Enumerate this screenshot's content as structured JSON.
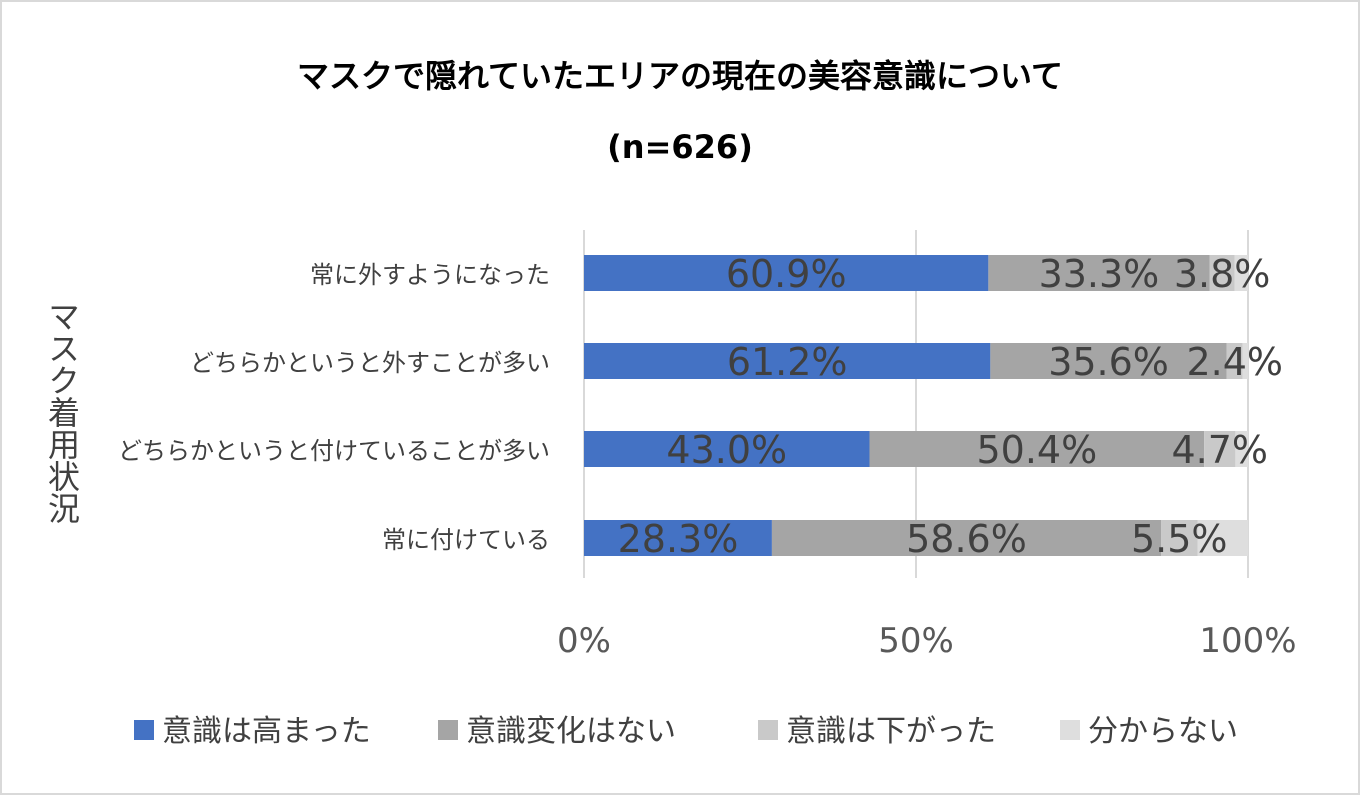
{
  "chart_data": {
    "type": "bar",
    "orientation": "horizontal",
    "stacked": "percent",
    "title": "マスクで隠れていたエリアの現在の美容意識について",
    "subtitle": "(n=626)",
    "ylabel": "マスク着用状況",
    "xlabel": "",
    "categories": [
      "常に外すようになった",
      "どちらかというと外すことが多い",
      "どちらかというと付けていることが多い",
      "常に付けている"
    ],
    "series": [
      {
        "name": "意識は高まった",
        "color": "#4472C4",
        "values": [
          60.9,
          61.2,
          43.0,
          28.3
        ],
        "labels": [
          "60.9%",
          "61.2%",
          "43.0%",
          "28.3%"
        ]
      },
      {
        "name": "意識変化はない",
        "color": "#A5A5A5",
        "values": [
          33.3,
          35.6,
          50.4,
          58.6
        ],
        "labels": [
          "33.3%",
          "35.6%",
          "50.4%",
          "58.6%"
        ]
      },
      {
        "name": "意識は下がった",
        "color": "#C9C9C9",
        "values": [
          3.8,
          2.4,
          4.7,
          5.5
        ],
        "labels": [
          "3.8%",
          "2.4%",
          "4.7%",
          "5.5%"
        ]
      },
      {
        "name": "分からない",
        "color": "#DEDEDE",
        "values": [
          2.0,
          0.8,
          1.9,
          7.6
        ],
        "labels": [
          "",
          "",
          "",
          ""
        ]
      }
    ],
    "xlim": [
      0,
      100
    ],
    "xticks": [
      {
        "value": 0,
        "label": "0%"
      },
      {
        "value": 50,
        "label": "50%"
      },
      {
        "value": 100,
        "label": "100%"
      }
    ],
    "grid": "vertical",
    "legend": "bottom"
  }
}
